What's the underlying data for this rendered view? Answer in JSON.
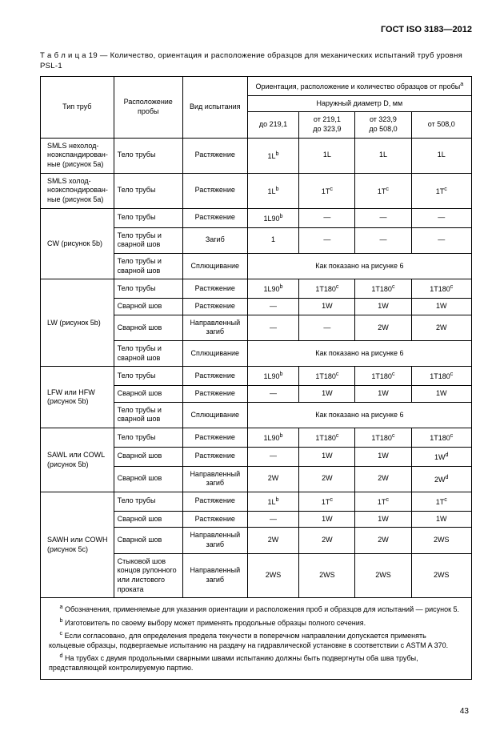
{
  "doc_id": "ГОСТ ISO 3183—2012",
  "table_caption": "Т а б л и ц а  19 — Количество, ориентация и расположение образцов для механических испытаний труб уровня PSL-1",
  "headers": {
    "pipe_type": "Тип труб",
    "sample_loc": "Расположение пробы",
    "test_type": "Вид испытания",
    "group_top": "Ориентация, расположение и количество образцов от пробы",
    "group_top_sup": "a",
    "diam_label": "Наружный диаметр D, мм",
    "d1": "до 219,1",
    "d2_a": "от 219,1",
    "d2_b": "до 323,9",
    "d3_a": "от 323,9",
    "d3_b": "до 508,0",
    "d4": "от 508,0"
  },
  "rows": [
    {
      "ptype": "SMLS нехолод-ноэкспандирован-ные (рисунок 5a)",
      "loc": "Тело трубы",
      "test": "Растяжение",
      "c": [
        "1Lb",
        "1L",
        "1L",
        "1L"
      ]
    },
    {
      "ptype": "SMLS холод-ноэкспондирован-ные (рисунок 5a)",
      "loc": "Тело трубы",
      "test": "Растяжение",
      "c": [
        "1Lb",
        "1Tc",
        "1Tc",
        "1Tc"
      ]
    },
    {
      "ptype": "CW (рисунок 5b)",
      "loc": "Тело трубы",
      "test": "Растяжение",
      "c": [
        "1L90b",
        "—",
        "—",
        "—"
      ],
      "ptype_rowspan": 3
    },
    {
      "loc": "Тело трубы и сварной шов",
      "test": "Загиб",
      "c": [
        "1",
        "—",
        "—",
        "—"
      ]
    },
    {
      "loc": "Тело трубы и сварной шов",
      "test": "Сплющивание",
      "span": "Как показано на рисунке 6"
    },
    {
      "ptype": "LW (рисунок 5b)",
      "loc": "Тело трубы",
      "test": "Растяжение",
      "c": [
        "1L90b",
        "1T180c",
        "1T180c",
        "1T180c"
      ],
      "ptype_rowspan": 4
    },
    {
      "loc": "Сварной шов",
      "test": "Растяжение",
      "c": [
        "—",
        "1W",
        "1W",
        "1W"
      ]
    },
    {
      "loc": "Сварной шов",
      "test": "Направленный загиб",
      "c": [
        "—",
        "—",
        "2W",
        "2W"
      ]
    },
    {
      "loc": "Тело трубы и сварной шов",
      "test": "Сплющивание",
      "span": "Как показано на рисунке 6"
    },
    {
      "ptype": "LFW или HFW (рисунок 5b)",
      "loc": "Тело трубы",
      "test": "Растяжение",
      "c": [
        "1L90b",
        "1T180c",
        "1T180c",
        "1T180c"
      ],
      "ptype_rowspan": 3
    },
    {
      "loc": "Сварной шов",
      "test": "Растяжение",
      "c": [
        "—",
        "1W",
        "1W",
        "1W"
      ]
    },
    {
      "loc": "Тело трубы и сварной шов",
      "test": "Сплющивание",
      "span": "Как показано на рисунке 6"
    },
    {
      "ptype": "SAWL или COWL (рисунок 5b)",
      "loc": "Тело трубы",
      "test": "Растяжение",
      "c": [
        "1L90b",
        "1T180c",
        "1T180c",
        "1T180c"
      ],
      "ptype_rowspan": 3
    },
    {
      "loc": "Сварной шов",
      "test": "Растяжение",
      "c": [
        "—",
        "1W",
        "1W",
        "1Wd"
      ]
    },
    {
      "loc": "Сварной шов",
      "test": "Направленный загиб",
      "c": [
        "2W",
        "2W",
        "2W",
        "2Wd"
      ]
    },
    {
      "ptype": "SAWH или COWH (рисунок 5c)",
      "loc": "Тело трубы",
      "test": "Растяжение",
      "c": [
        "1Lb",
        "1Tc",
        "1Tc",
        "1Tc"
      ],
      "ptype_rowspan": 4
    },
    {
      "loc": "Сварной шов",
      "test": "Растяжение",
      "c": [
        "—",
        "1W",
        "1W",
        "1W"
      ]
    },
    {
      "loc": "Сварной шов",
      "test": "Направленный загиб",
      "c": [
        "2W",
        "2W",
        "2W",
        "2WS"
      ]
    },
    {
      "loc": "Стыковой шов концов рулонного или листового проката",
      "test": "Направленный загиб",
      "c": [
        "2WS",
        "2WS",
        "2WS",
        "2WS"
      ]
    }
  ],
  "notes": {
    "a": "Обозначения, применяемые для указания ориентации и расположения проб и образцов для испытаний — рисунок 5.",
    "b": "Изготовитель по своему выбору может применять продольные образцы полного сечения.",
    "c": "Если согласовано, для определения предела текучести в поперечном направлении допускается применять кольцевые образцы, подвергаемые испытанию на раздачу на гидравлической установке в соответствии с ASTM A 370.",
    "d": "На трубах с двумя продольными сварными швами испытанию должны быть подвергнуты оба шва трубы, представляющей контролируемую партию."
  },
  "page_number": "43"
}
